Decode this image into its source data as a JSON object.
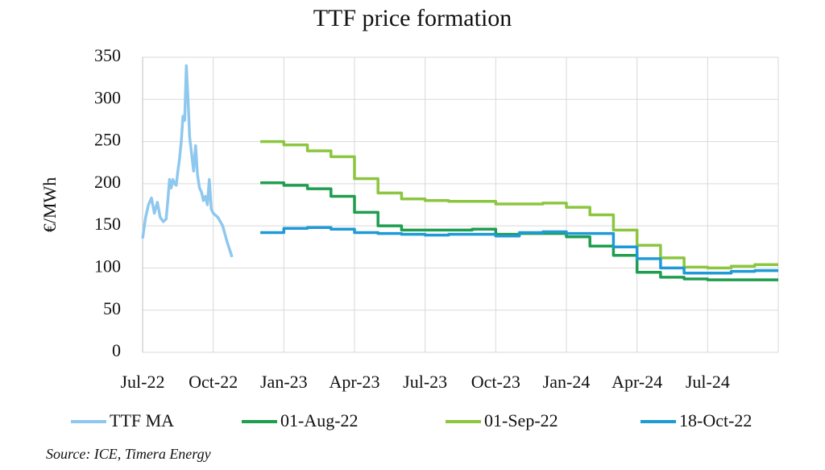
{
  "chart_data": {
    "type": "line",
    "title": "TTF price formation",
    "y_label": "€/MWh",
    "source": "Source: ICE, Timera Energy",
    "xlim": [
      "Jul-22",
      "Oct-24"
    ],
    "xticks": [
      "Jul-22",
      "Oct-22",
      "Jan-23",
      "Apr-23",
      "Jul-23",
      "Oct-23",
      "Jan-24",
      "Apr-24",
      "Jul-24"
    ],
    "ylim": [
      0,
      350
    ],
    "yticks": [
      0,
      50,
      100,
      150,
      200,
      250,
      300,
      350
    ],
    "grid": true,
    "series": [
      {
        "name": "TTF MA",
        "color": "#8fc8ee",
        "x": [
          "Jul-22",
          "Jul-22",
          "Jul-22",
          "Jul-22",
          "Jul-22",
          "Jul-22",
          "Jul-22",
          "Jul-22",
          "Aug-22",
          "Aug-22",
          "Aug-22",
          "Aug-22",
          "Aug-22",
          "Aug-22",
          "Aug-22",
          "Aug-22",
          "Aug-22",
          "Aug-22",
          "Aug-22",
          "Aug-22",
          "Aug-22",
          "Aug-22",
          "Sep-22",
          "Sep-22",
          "Sep-22",
          "Sep-22",
          "Sep-22",
          "Sep-22",
          "Sep-22",
          "Sep-22",
          "Sep-22",
          "Sep-22",
          "Sep-22",
          "Sep-22",
          "Oct-22",
          "Oct-22",
          "Oct-22",
          "Oct-22",
          "Oct-22"
        ],
        "values": [
          135,
          160,
          175,
          183,
          165,
          178,
          160,
          155,
          158,
          180,
          205,
          195,
          205,
          200,
          198,
          215,
          230,
          250,
          280,
          275,
          340,
          300,
          255,
          235,
          215,
          245,
          210,
          195,
          190,
          180,
          185,
          175,
          205,
          170,
          165,
          160,
          150,
          130,
          113
        ]
      },
      {
        "name": "01-Aug-22",
        "color": "#1e9e4e",
        "x": [
          "Dec-22",
          "Jan-23",
          "Feb-23",
          "Mar-23",
          "Apr-23",
          "May-23",
          "Jun-23",
          "Jul-23",
          "Aug-23",
          "Sep-23",
          "Oct-23",
          "Nov-23",
          "Dec-23",
          "Jan-24",
          "Feb-24",
          "Mar-24",
          "Apr-24",
          "May-24",
          "Jun-24",
          "Jul-24",
          "Aug-24",
          "Sep-24"
        ],
        "values": [
          201,
          198,
          194,
          185,
          166,
          150,
          145,
          145,
          145,
          146,
          140,
          141,
          141,
          137,
          126,
          115,
          95,
          89,
          87,
          86,
          86,
          86
        ]
      },
      {
        "name": "01-Sep-22",
        "color": "#8cc63f",
        "x": [
          "Dec-22",
          "Jan-23",
          "Feb-23",
          "Mar-23",
          "Apr-23",
          "May-23",
          "Jun-23",
          "Jul-23",
          "Aug-23",
          "Sep-23",
          "Oct-23",
          "Nov-23",
          "Dec-23",
          "Jan-24",
          "Feb-24",
          "Mar-24",
          "Apr-24",
          "May-24",
          "Jun-24",
          "Jul-24",
          "Aug-24",
          "Sep-24"
        ],
        "values": [
          250,
          246,
          239,
          232,
          206,
          189,
          182,
          180,
          179,
          179,
          176,
          176,
          177,
          172,
          163,
          145,
          127,
          112,
          101,
          100,
          102,
          104
        ]
      },
      {
        "name": "18-Oct-22",
        "color": "#1f9ad6",
        "x": [
          "Dec-22",
          "Jan-23",
          "Feb-23",
          "Mar-23",
          "Apr-23",
          "May-23",
          "Jun-23",
          "Jul-23",
          "Aug-23",
          "Sep-23",
          "Oct-23",
          "Nov-23",
          "Dec-23",
          "Jan-24",
          "Feb-24",
          "Mar-24",
          "Apr-24",
          "May-24",
          "Jun-24",
          "Jul-24",
          "Aug-24",
          "Sep-24"
        ],
        "values": [
          142,
          147,
          148,
          146,
          142,
          141,
          140,
          139,
          140,
          140,
          138,
          142,
          143,
          141,
          141,
          125,
          111,
          100,
          94,
          94,
          96,
          97
        ]
      }
    ]
  }
}
